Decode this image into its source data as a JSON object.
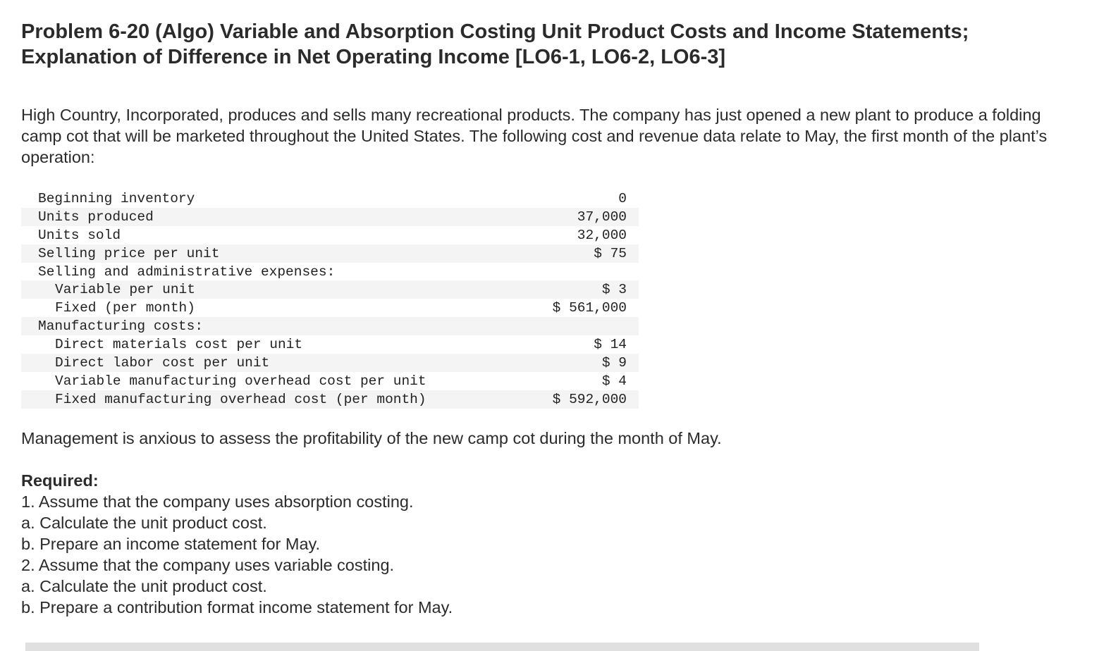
{
  "problem": {
    "title_line1": "Problem 6-20 (Algo) Variable and Absorption Costing Unit Product Costs and Income Statements;",
    "title_line2": "Explanation of Difference in Net Operating Income [LO6-1, LO6-2, LO6-3]",
    "intro": "High Country, Incorporated, produces and sells many recreational products. The company has just opened a new plant to produce a folding camp cot that will be marketed throughout the United States. The following cost and revenue data relate to May, the first month of the plant’s operation:"
  },
  "data_table": {
    "rows": [
      {
        "label": "Beginning inventory",
        "value": "0",
        "indent": false
      },
      {
        "label": "Units produced",
        "value": "37,000",
        "indent": false
      },
      {
        "label": "Units sold",
        "value": "32,000",
        "indent": false
      },
      {
        "label": "Selling price per unit",
        "value": "$ 75",
        "indent": false
      },
      {
        "label": "Selling and administrative expenses:",
        "value": "",
        "indent": false
      },
      {
        "label": "Variable per unit",
        "value": "$ 3",
        "indent": true
      },
      {
        "label": "Fixed (per month)",
        "value": "$ 561,000",
        "indent": true
      },
      {
        "label": "Manufacturing costs:",
        "value": "",
        "indent": false
      },
      {
        "label": "Direct materials cost per unit",
        "value": "$ 14",
        "indent": true
      },
      {
        "label": "Direct labor cost per unit",
        "value": "$ 9",
        "indent": true
      },
      {
        "label": "Variable manufacturing overhead cost per unit",
        "value": "$ 4",
        "indent": true
      },
      {
        "label": "Fixed manufacturing overhead cost (per month)",
        "value": "$ 592,000",
        "indent": true
      }
    ]
  },
  "management_text": "Management is anxious to assess the profitability of the new camp cot during the month of May.",
  "required": {
    "heading": "Required:",
    "items": [
      "1. Assume that the company uses absorption costing.",
      "a. Calculate the unit product cost.",
      "b. Prepare an income statement for May.",
      "2. Assume that the company uses variable costing.",
      "a. Calculate the unit product cost.",
      "b. Prepare a contribution format income statement for May."
    ]
  }
}
